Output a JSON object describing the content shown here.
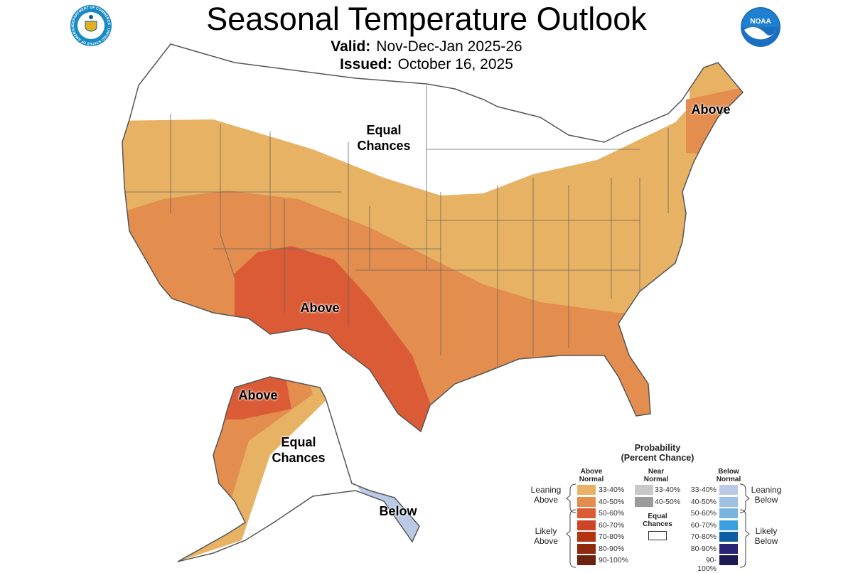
{
  "header": {
    "title": "Seasonal Temperature Outlook",
    "valid_label": "Valid:",
    "valid_value": "Nov-Dec-Jan 2025-26",
    "issued_label": "Issued:",
    "issued_value": "October 16, 2025",
    "left_logo": "department-of-commerce-seal",
    "left_logo_text": "DEPARTMENT OF COMMERCE · UNITED STATES OF AMERICA",
    "right_logo": "noaa-logo",
    "right_logo_text": "NOAA"
  },
  "map": {
    "labels": {
      "conus_equal": [
        "Equal",
        "Chances"
      ],
      "northeast_above": "Above",
      "southwest_above": "Above",
      "alaska_above": "Above",
      "alaska_equal": [
        "Equal",
        "Chances"
      ],
      "alaska_below": "Below"
    }
  },
  "legend": {
    "title": "Probability",
    "subtitle": "(Percent Chance)",
    "above_header": [
      "Above",
      "Normal"
    ],
    "near_header": [
      "Near",
      "Normal"
    ],
    "below_header": [
      "Below",
      "Normal"
    ],
    "leaning_above": [
      "Leaning",
      "Above"
    ],
    "likely_above": [
      "Likely",
      "Above"
    ],
    "leaning_below": [
      "Leaning",
      "Below"
    ],
    "likely_below": [
      "Likely",
      "Below"
    ],
    "equal_chances": [
      "Equal",
      "Chances"
    ],
    "above": [
      {
        "range": "33-40%",
        "color": "#e8b264"
      },
      {
        "range": "40-50%",
        "color": "#e38d4f"
      },
      {
        "range": "50-60%",
        "color": "#db5b36"
      },
      {
        "range": "60-70%",
        "color": "#cf4326"
      },
      {
        "range": "70-80%",
        "color": "#b5330f"
      },
      {
        "range": "80-90%",
        "color": "#8f2a0f"
      },
      {
        "range": "90-100%",
        "color": "#6b230d"
      }
    ],
    "near": [
      {
        "range": "33-40%",
        "color": "#c8c8c8"
      },
      {
        "range": "40-50%",
        "color": "#9b9b9b"
      }
    ],
    "below": [
      {
        "range": "33-40%",
        "color": "#b9c9e6"
      },
      {
        "range": "40-50%",
        "color": "#9fc0e2"
      },
      {
        "range": "50-60%",
        "color": "#7ab4e1"
      },
      {
        "range": "60-70%",
        "color": "#3a9ee0"
      },
      {
        "range": "70-80%",
        "color": "#0b5ea6"
      },
      {
        "range": "80-90%",
        "color": "#2a2476"
      },
      {
        "range": "90-100%",
        "color": "#1d1a55"
      }
    ]
  }
}
